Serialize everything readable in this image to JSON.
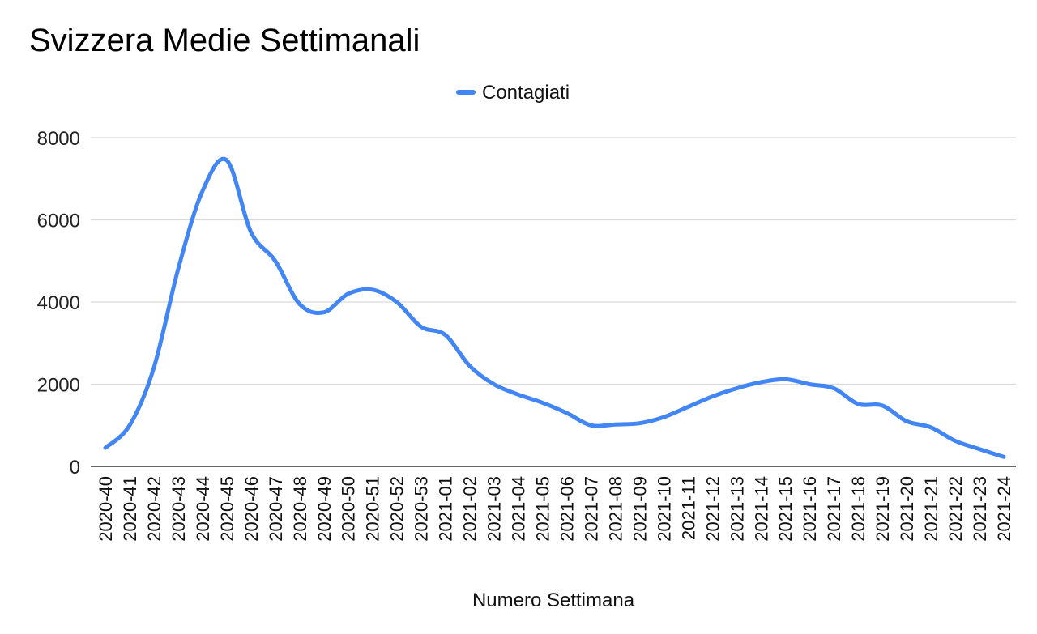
{
  "chart_data": {
    "type": "line",
    "title": "Svizzera Medie Settimanali",
    "xlabel": "Numero Settimana",
    "ylabel": "",
    "ylim": [
      0,
      8000
    ],
    "yticks": [
      0,
      2000,
      4000,
      6000,
      8000
    ],
    "grid": true,
    "legend_position": "top-center",
    "categories": [
      "2020-40",
      "2020-41",
      "2020-42",
      "2020-43",
      "2020-44",
      "2020-45",
      "2020-46",
      "2020-47",
      "2020-48",
      "2020-49",
      "2020-50",
      "2020-51",
      "2020-52",
      "2020-53",
      "2021-01",
      "2021-02",
      "2021-03",
      "2021-04",
      "2021-05",
      "2021-06",
      "2021-07",
      "2021-08",
      "2021-09",
      "2021-10",
      "2021-11",
      "2021-12",
      "2021-13",
      "2021-14",
      "2021-15",
      "2021-16",
      "2021-17",
      "2021-18",
      "2021-19",
      "2021-20",
      "2021-21",
      "2021-22",
      "2021-23",
      "2021-24"
    ],
    "series": [
      {
        "name": "Contagiati",
        "color": "#4285f4",
        "values": [
          450,
          1000,
          2400,
          4800,
          6700,
          7450,
          5700,
          5000,
          3950,
          3750,
          4200,
          4300,
          4000,
          3400,
          3200,
          2450,
          2000,
          1750,
          1550,
          1300,
          1000,
          1020,
          1050,
          1200,
          1450,
          1700,
          1900,
          2050,
          2120,
          2000,
          1900,
          1520,
          1480,
          1100,
          950,
          620,
          420,
          230
        ]
      }
    ]
  }
}
